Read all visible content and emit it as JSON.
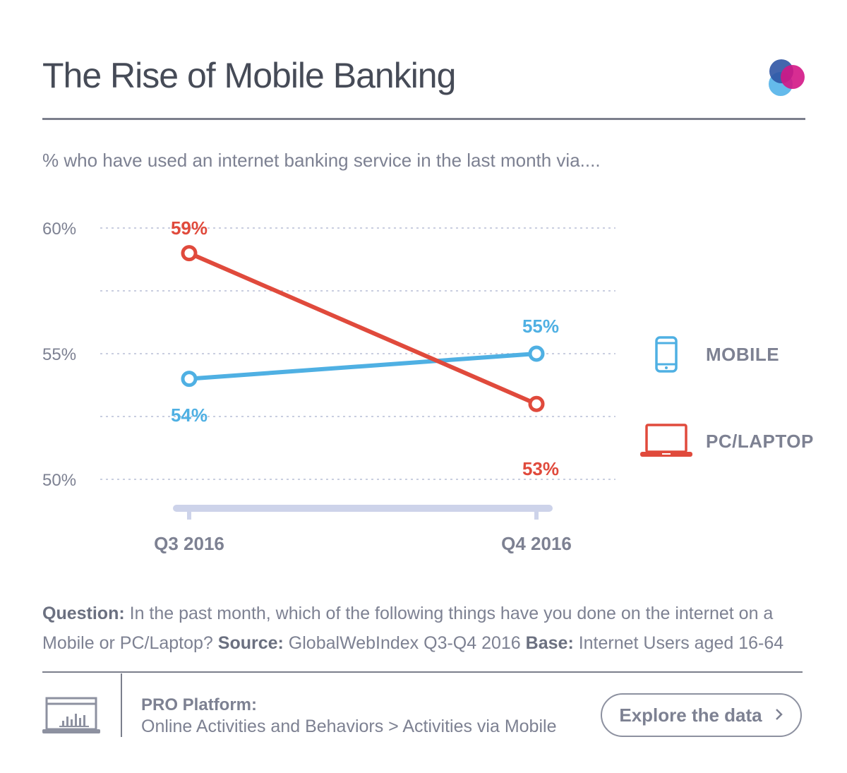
{
  "header": {
    "title": "The Rise of Mobile Banking",
    "subtitle": "% who have used an internet banking service in the last month via...."
  },
  "chart_data": {
    "type": "line",
    "categories": [
      "Q3 2016",
      "Q4 2016"
    ],
    "series": [
      {
        "name": "MOBILE",
        "values": [
          54,
          55
        ],
        "labels": [
          "54%",
          "55%"
        ],
        "color": "#4fb0e3"
      },
      {
        "name": "PC/LAPTOP",
        "values": [
          59,
          53
        ],
        "labels": [
          "59%",
          "53%"
        ],
        "color": "#e04a3c"
      }
    ],
    "ylim": [
      50,
      60
    ],
    "yticks": [
      50,
      55,
      60
    ],
    "ytick_labels": [
      "50%",
      "55%",
      "60%"
    ],
    "gridlines": [
      50,
      52.5,
      55,
      57.5,
      60
    ],
    "grid": true,
    "legend_position": "right",
    "colors": {
      "grid": "#c9cee0",
      "axis": "#cdd3ea",
      "tick_text": "#7d8192"
    }
  },
  "legend": {
    "mobile": {
      "label": "MOBILE",
      "icon": "smartphone-icon"
    },
    "pc": {
      "label": "PC/LAPTOP",
      "icon": "laptop-icon"
    }
  },
  "footnote": {
    "question_label": "Question:",
    "question_text": " In the past month, which of the following things have you done on the internet on a Mobile or PC/Laptop?",
    "source_label": "Source:",
    "source_text": " GlobalWebIndex Q3-Q4 2016",
    "base_label": "Base:",
    "base_text": " Internet Users aged 16-64"
  },
  "footer": {
    "pro_title": "PRO Platform:",
    "pro_path": "Online Activities and Behaviors  > Activities via Mobile",
    "explore_label": "Explore the data",
    "explore_icon": "chevron-right-icon"
  }
}
